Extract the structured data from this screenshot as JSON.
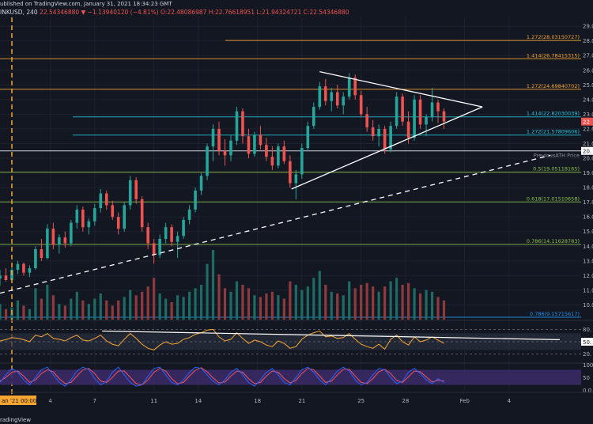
{
  "header": {
    "published": "ublished on TradingView.com, January 31, 2021 18:34:23 GMT",
    "symbol": "INKUSD, 240",
    "price_line": "22.54346880 ▼ −1.13940120 (−4.81%) O:22.48086987 H:22.76618951 L:21.94324721 C:22.54346880"
  },
  "footer": {
    "brand": "radingView"
  },
  "chart_data": {
    "type": "candlestick",
    "title": "",
    "ylim": [
      9,
      29.6
    ],
    "y_ticks": [
      "29.0",
      "28.0",
      "27.0",
      "26.0",
      "25.0",
      "24.0",
      "23.0",
      "22.0",
      "21.0",
      "20.0",
      "19.0",
      "18.0",
      "17.0",
      "16.0",
      "15.0",
      "14.0",
      "13.0",
      "12.0",
      "11.0",
      "10.0"
    ],
    "y_tick_values": [
      29,
      28,
      27,
      26,
      25,
      24,
      23,
      22,
      21,
      20,
      19,
      18,
      17,
      16,
      15,
      14,
      13,
      12,
      11,
      10
    ],
    "x_ticks": [
      "4",
      "7",
      "11",
      "14",
      "18",
      "21",
      "25",
      "28",
      "Feb",
      "4"
    ],
    "x_tick_values": [
      4,
      7,
      11,
      14,
      18,
      21,
      25,
      28,
      32,
      35
    ],
    "x_range": [
      0.6,
      38
    ],
    "date_label": "an '21  00:00",
    "current_price": "22",
    "price_marker": "20.",
    "fib_levels": [
      {
        "label": "1.272(28.03150727)",
        "value": 28.03,
        "color": "#f7a631"
      },
      {
        "label": "1.414(26.78415315)",
        "value": 26.78,
        "color": "#f7a631"
      },
      {
        "label": "1.272(24.69840702)",
        "value": 24.7,
        "color": "#f7a631"
      },
      {
        "label": "1.414(22.82030039)",
        "value": 22.82,
        "color": "#26c6da"
      },
      {
        "label": "1.272(21.57809606)",
        "value": 21.58,
        "color": "#26c6da"
      },
      {
        "label": "0.5(19.05118165)",
        "value": 19.05,
        "color": "#8bc34a"
      },
      {
        "label": "0.618(17.01510658)",
        "value": 17.02,
        "color": "#8bc34a"
      },
      {
        "label": "0.786(14.11628783)",
        "value": 14.12,
        "color": "#8bc34a"
      },
      {
        "label": "0.786(9.15715617)",
        "value": 9.16,
        "color": "#2196f3"
      }
    ],
    "ath_label": "PreviousATH Price",
    "ath_value": 20.5,
    "candles": [
      [
        0.6,
        11.8,
        12.4,
        11.3,
        12.0
      ],
      [
        1.0,
        12.0,
        12.5,
        11.6,
        11.7
      ],
      [
        1.4,
        11.7,
        12.6,
        11.6,
        12.4
      ],
      [
        1.8,
        12.4,
        13.0,
        12.1,
        12.8
      ],
      [
        2.2,
        12.8,
        12.9,
        12.0,
        12.2
      ],
      [
        2.6,
        12.2,
        12.7,
        11.9,
        12.5
      ],
      [
        3.0,
        12.5,
        14.0,
        12.4,
        13.8
      ],
      [
        3.4,
        13.8,
        14.5,
        13.0,
        13.2
      ],
      [
        3.8,
        13.2,
        15.5,
        13.1,
        15.2
      ],
      [
        4.2,
        15.2,
        15.6,
        13.8,
        14.1
      ],
      [
        4.6,
        14.1,
        14.8,
        13.5,
        14.6
      ],
      [
        5.0,
        14.6,
        15.0,
        13.9,
        14.2
      ],
      [
        5.4,
        14.2,
        15.8,
        14.0,
        15.6
      ],
      [
        5.8,
        15.6,
        16.8,
        15.2,
        16.5
      ],
      [
        6.2,
        16.5,
        16.7,
        15.0,
        15.3
      ],
      [
        6.6,
        15.3,
        15.9,
        14.8,
        15.7
      ],
      [
        7.0,
        15.7,
        16.9,
        15.4,
        16.6
      ],
      [
        7.4,
        16.6,
        17.9,
        16.3,
        17.6
      ],
      [
        7.8,
        17.6,
        17.8,
        16.5,
        16.8
      ],
      [
        8.2,
        16.8,
        17.1,
        15.8,
        16.0
      ],
      [
        8.6,
        16.0,
        16.3,
        14.8,
        15.2
      ],
      [
        9.0,
        15.2,
        17.0,
        15.0,
        16.8
      ],
      [
        9.4,
        16.8,
        18.8,
        16.5,
        18.5
      ],
      [
        9.8,
        18.5,
        18.7,
        16.9,
        17.2
      ],
      [
        10.2,
        17.2,
        17.4,
        15.0,
        15.3
      ],
      [
        10.6,
        15.3,
        15.6,
        13.8,
        14.2
      ],
      [
        11.0,
        14.2,
        14.5,
        12.8,
        13.4
      ],
      [
        11.4,
        13.4,
        14.8,
        13.2,
        14.5
      ],
      [
        11.8,
        14.5,
        15.6,
        14.2,
        15.3
      ],
      [
        12.2,
        15.3,
        15.5,
        14.0,
        14.3
      ],
      [
        12.6,
        14.3,
        15.0,
        13.2,
        14.7
      ],
      [
        13.0,
        14.7,
        16.0,
        14.5,
        15.8
      ],
      [
        13.4,
        15.8,
        16.8,
        15.5,
        16.5
      ],
      [
        13.8,
        16.5,
        18.0,
        16.3,
        17.8
      ],
      [
        14.2,
        17.8,
        19.0,
        17.5,
        18.8
      ],
      [
        14.6,
        18.8,
        21.0,
        18.5,
        20.8
      ],
      [
        15.0,
        20.8,
        22.3,
        19.8,
        22.0
      ],
      [
        15.4,
        22.0,
        22.5,
        20.2,
        20.5
      ],
      [
        15.8,
        20.5,
        21.3,
        19.5,
        20.2
      ],
      [
        16.2,
        20.2,
        21.6,
        19.8,
        21.2
      ],
      [
        16.6,
        21.2,
        23.5,
        20.9,
        23.2
      ],
      [
        17.0,
        23.2,
        23.4,
        21.0,
        21.5
      ],
      [
        17.4,
        21.5,
        22.0,
        20.0,
        20.3
      ],
      [
        17.8,
        20.3,
        21.8,
        20.1,
        21.6
      ],
      [
        18.2,
        21.6,
        22.2,
        20.6,
        20.9
      ],
      [
        18.6,
        20.9,
        21.4,
        19.8,
        20.1
      ],
      [
        19.0,
        20.1,
        20.8,
        19.2,
        19.5
      ],
      [
        19.4,
        19.5,
        21.0,
        19.3,
        20.8
      ],
      [
        19.8,
        20.8,
        21.2,
        19.6,
        19.8
      ],
      [
        20.2,
        19.8,
        20.2,
        18.0,
        18.3
      ],
      [
        20.6,
        18.3,
        19.2,
        17.2,
        18.9
      ],
      [
        21.0,
        18.9,
        21.0,
        18.6,
        20.7
      ],
      [
        21.4,
        20.7,
        22.5,
        20.5,
        22.2
      ],
      [
        21.8,
        22.2,
        23.8,
        22.0,
        23.5
      ],
      [
        22.2,
        23.5,
        25.2,
        23.3,
        24.9
      ],
      [
        22.6,
        24.9,
        25.4,
        23.6,
        23.9
      ],
      [
        23.0,
        23.9,
        24.8,
        23.2,
        24.5
      ],
      [
        23.4,
        24.5,
        25.0,
        23.4,
        23.6
      ],
      [
        23.8,
        23.6,
        24.5,
        23.0,
        24.2
      ],
      [
        24.2,
        24.2,
        25.8,
        24.0,
        25.5
      ],
      [
        24.6,
        25.5,
        25.7,
        24.0,
        24.3
      ],
      [
        25.0,
        24.3,
        24.6,
        22.8,
        23.0
      ],
      [
        25.4,
        23.0,
        23.5,
        21.8,
        22.1
      ],
      [
        25.8,
        22.1,
        22.6,
        21.2,
        21.5
      ],
      [
        26.2,
        21.5,
        22.3,
        20.8,
        22.0
      ],
      [
        26.6,
        22.0,
        22.2,
        20.3,
        20.6
      ],
      [
        27.0,
        20.6,
        22.5,
        20.4,
        22.2
      ],
      [
        27.4,
        22.2,
        24.5,
        22.0,
        24.2
      ],
      [
        27.8,
        24.2,
        24.4,
        22.2,
        22.5
      ],
      [
        28.2,
        22.5,
        23.2,
        21.0,
        21.4
      ],
      [
        28.6,
        21.4,
        24.3,
        21.2,
        24.0
      ],
      [
        29.0,
        24.0,
        24.3,
        22.0,
        22.3
      ],
      [
        29.4,
        22.3,
        23.0,
        21.5,
        22.8
      ],
      [
        29.8,
        22.8,
        24.8,
        22.5,
        23.8
      ],
      [
        30.2,
        23.8,
        24.0,
        22.4,
        23.2
      ],
      [
        30.6,
        23.2,
        23.4,
        22.0,
        22.5
      ]
    ],
    "volumes": [
      0.9,
      0.6,
      0.7,
      1.1,
      0.8,
      0.6,
      1.8,
      1.2,
      2.0,
      1.4,
      0.9,
      0.8,
      1.2,
      1.6,
      1.1,
      0.9,
      1.2,
      1.5,
      1.1,
      0.8,
      1.1,
      1.3,
      1.7,
      1.4,
      1.6,
      1.9,
      2.4,
      1.5,
      1.2,
      1.0,
      1.4,
      1.3,
      1.6,
      1.8,
      2.0,
      3.2,
      4.0,
      2.6,
      1.8,
      1.6,
      2.2,
      2.0,
      1.8,
      1.4,
      1.3,
      1.5,
      1.6,
      1.4,
      1.2,
      2.2,
      2.0,
      1.7,
      1.9,
      2.4,
      2.8,
      2.0,
      1.6,
      1.5,
      1.4,
      2.2,
      1.8,
      2.0,
      2.1,
      1.9,
      1.6,
      1.9,
      2.2,
      2.4,
      2.0,
      2.1,
      1.8,
      1.5,
      1.7,
      1.6,
      1.3,
      1.1
    ],
    "rsi_levels": [
      "80.",
      "50.",
      "20."
    ],
    "rsi_current": "50.",
    "rsi": [
      52,
      55,
      60,
      58,
      55,
      50,
      66,
      62,
      70,
      58,
      56,
      52,
      60,
      66,
      54,
      52,
      58,
      66,
      52,
      44,
      40,
      56,
      70,
      58,
      44,
      34,
      30,
      42,
      50,
      44,
      46,
      56,
      60,
      68,
      72,
      78,
      80,
      62,
      52,
      56,
      72,
      58,
      46,
      54,
      50,
      42,
      38,
      52,
      46,
      34,
      38,
      56,
      66,
      72,
      76,
      62,
      64,
      58,
      60,
      70,
      56,
      44,
      38,
      34,
      44,
      32,
      56,
      66,
      50,
      42,
      62,
      50,
      54,
      62,
      54,
      46
    ],
    "stoch_levels": [
      "100",
      "50",
      "0.0"
    ],
    "stoch_k": [
      30,
      60,
      85,
      70,
      40,
      20,
      50,
      80,
      90,
      60,
      30,
      15,
      40,
      75,
      90,
      80,
      45,
      20,
      35,
      70,
      90,
      60,
      30,
      15,
      20,
      55,
      85,
      90,
      60,
      30,
      20,
      40,
      70,
      90,
      85,
      60,
      35,
      20,
      40,
      70,
      85,
      60,
      30,
      15,
      40,
      70,
      85,
      60,
      30,
      20,
      50,
      80,
      90,
      70,
      40,
      20,
      45,
      75,
      90,
      75,
      40,
      20,
      30,
      60,
      85,
      80,
      50,
      25,
      35,
      70,
      85,
      65,
      40,
      25,
      45,
      30
    ],
    "stoch_d": [
      35,
      50,
      70,
      75,
      55,
      30,
      40,
      65,
      80,
      72,
      45,
      25,
      30,
      55,
      80,
      85,
      65,
      35,
      30,
      50,
      75,
      75,
      50,
      25,
      20,
      40,
      70,
      85,
      75,
      45,
      25,
      30,
      55,
      78,
      88,
      72,
      48,
      28,
      32,
      55,
      75,
      70,
      45,
      25,
      30,
      55,
      75,
      70,
      45,
      28,
      38,
      65,
      85,
      80,
      55,
      30,
      35,
      60,
      82,
      82,
      55,
      30,
      25,
      45,
      72,
      82,
      65,
      38,
      30,
      52,
      75,
      72,
      52,
      32,
      38,
      35
    ]
  }
}
